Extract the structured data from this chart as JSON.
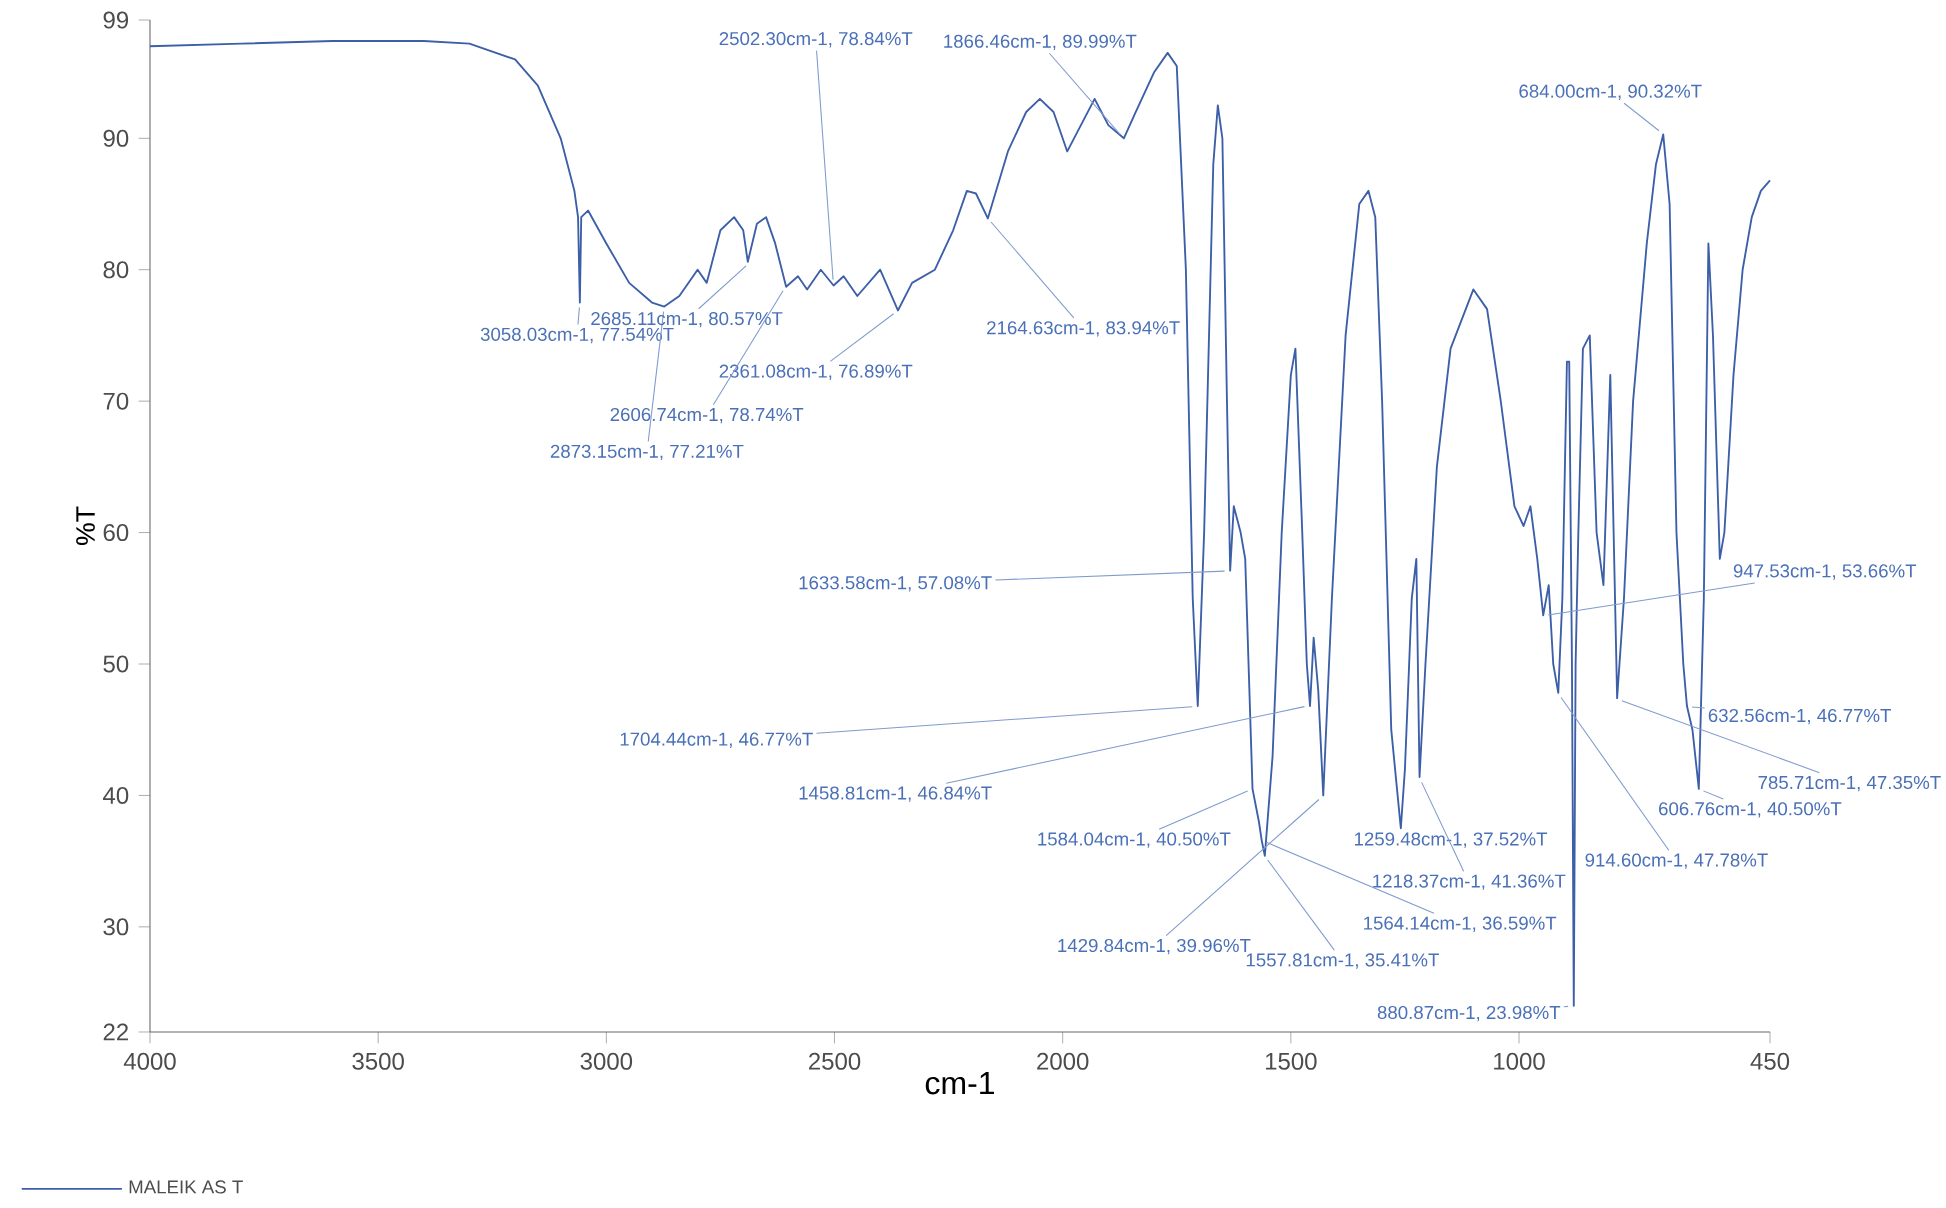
{
  "chart_data": {
    "type": "line",
    "xlabel": "cm-1",
    "ylabel": "%T",
    "xlim": [
      4000,
      450
    ],
    "ylim": [
      22,
      99
    ],
    "xticks": [
      4000,
      3500,
      3000,
      2500,
      2000,
      1500,
      1000,
      450
    ],
    "yticks": [
      22,
      30,
      40,
      50,
      60,
      70,
      80,
      90,
      99
    ],
    "legend": "bottom",
    "marker": "none",
    "line_style": "solid",
    "series": [
      {
        "name": "MALEIK AS T",
        "color": "#3c5fa8",
        "x": [
          4000,
          3800,
          3600,
          3400,
          3300,
          3200,
          3150,
          3100,
          3070,
          3062,
          3058,
          3055,
          3040,
          3000,
          2950,
          2900,
          2873,
          2840,
          2800,
          2780,
          2750,
          2720,
          2700,
          2690,
          2670,
          2650,
          2630,
          2606,
          2580,
          2560,
          2530,
          2502,
          2480,
          2450,
          2400,
          2361,
          2330,
          2280,
          2240,
          2210,
          2190,
          2164,
          2120,
          2080,
          2050,
          2020,
          1990,
          1960,
          1930,
          1900,
          1866,
          1840,
          1800,
          1770,
          1750,
          1730,
          1715,
          1704,
          1690,
          1670,
          1660,
          1650,
          1640,
          1633,
          1625,
          1610,
          1600,
          1584,
          1570,
          1564,
          1557,
          1540,
          1520,
          1500,
          1490,
          1475,
          1465,
          1458,
          1450,
          1440,
          1429,
          1410,
          1380,
          1350,
          1330,
          1315,
          1300,
          1280,
          1259,
          1250,
          1235,
          1225,
          1218,
          1205,
          1180,
          1150,
          1100,
          1070,
          1040,
          1010,
          990,
          975,
          960,
          947,
          935,
          925,
          914,
          905,
          895,
          890,
          884,
          880,
          876,
          870,
          860,
          845,
          830,
          815,
          800,
          785,
          770,
          750,
          720,
          700,
          684,
          670,
          655,
          640,
          632,
          620,
          606,
          595,
          585,
          575,
          560,
          550,
          530,
          510,
          490,
          470,
          450
        ],
        "values": [
          97,
          97.2,
          97.4,
          97.4,
          97.2,
          96,
          94,
          90,
          86,
          84,
          77.5,
          84,
          84.5,
          82,
          79,
          77.5,
          77.2,
          78,
          80,
          79,
          83,
          84,
          83,
          80.6,
          83.5,
          84,
          82,
          78.7,
          79.5,
          78.5,
          80,
          78.8,
          79.5,
          78,
          80,
          76.9,
          79,
          80,
          83,
          86,
          85.8,
          83.9,
          89,
          92,
          93,
          92,
          89,
          91,
          93,
          91,
          90,
          92,
          95,
          96.5,
          95.5,
          80,
          55,
          46.8,
          60,
          88,
          92.5,
          90,
          70,
          57.1,
          62,
          60,
          58,
          40.5,
          38,
          36.6,
          35.4,
          43,
          60,
          72,
          74,
          60,
          50,
          46.8,
          52,
          48,
          40,
          55,
          75,
          85,
          86,
          84,
          70,
          45,
          37.5,
          42,
          55,
          58,
          41.4,
          50,
          65,
          74,
          78.5,
          77,
          70,
          62,
          60.5,
          62,
          58,
          53.7,
          56,
          50,
          47.8,
          55,
          73,
          73,
          50,
          24,
          50,
          60,
          74,
          75,
          60,
          56,
          72,
          47.4,
          55,
          70,
          82,
          88,
          90.3,
          85,
          60,
          50,
          46.8,
          45,
          40.5,
          55,
          82,
          75,
          58,
          60,
          72,
          80,
          84,
          86,
          86.8
        ]
      }
    ],
    "annotations": [
      {
        "text": "3058.03cm-1, 77.54%T",
        "x": 3058.03,
        "y": 77.54
      },
      {
        "text": "2873.15cm-1, 77.21%T",
        "x": 2873.15,
        "y": 77.21
      },
      {
        "text": "2685.11cm-1, 80.57%T",
        "x": 2685.11,
        "y": 80.57
      },
      {
        "text": "2502.30cm-1, 78.84%T",
        "x": 2502.3,
        "y": 78.84
      },
      {
        "text": "2361.08cm-1, 76.89%T",
        "x": 2361.08,
        "y": 76.89
      },
      {
        "text": "2606.74cm-1, 78.74%T",
        "x": 2606.74,
        "y": 78.74
      },
      {
        "text": "1866.46cm-1, 89.99%T",
        "x": 1866.46,
        "y": 89.99
      },
      {
        "text": "2164.63cm-1, 83.94%T",
        "x": 2164.63,
        "y": 83.94
      },
      {
        "text": "684.00cm-1, 90.32%T",
        "x": 684.0,
        "y": 90.32
      },
      {
        "text": "1633.58cm-1, 57.08%T",
        "x": 1633.58,
        "y": 57.08
      },
      {
        "text": "1704.44cm-1, 46.77%T",
        "x": 1704.44,
        "y": 46.77
      },
      {
        "text": "1458.81cm-1, 46.84%T",
        "x": 1458.81,
        "y": 46.84
      },
      {
        "text": "1584.04cm-1, 40.50%T",
        "x": 1584.04,
        "y": 40.5
      },
      {
        "text": "1259.48cm-1, 37.52%T",
        "x": 1259.48,
        "y": 37.52
      },
      {
        "text": "1218.37cm-1, 41.36%T",
        "x": 1218.37,
        "y": 41.36
      },
      {
        "text": "1564.14cm-1, 36.59%T",
        "x": 1564.14,
        "y": 36.59
      },
      {
        "text": "1429.84cm-1, 39.96%T",
        "x": 1429.84,
        "y": 39.96
      },
      {
        "text": "1557.81cm-1, 35.41%T",
        "x": 1557.81,
        "y": 35.41
      },
      {
        "text": "880.87cm-1, 23.98%T",
        "x": 880.87,
        "y": 23.98
      },
      {
        "text": "947.53cm-1, 53.66%T",
        "x": 947.53,
        "y": 53.66
      },
      {
        "text": "914.60cm-1, 47.78%T",
        "x": 914.6,
        "y": 47.78
      },
      {
        "text": "632.56cm-1, 46.77%T",
        "x": 632.56,
        "y": 46.77
      },
      {
        "text": "785.71cm-1, 47.35%T",
        "x": 785.71,
        "y": 47.35
      },
      {
        "text": "606.76cm-1, 40.50%T",
        "x": 606.76,
        "y": 40.5
      }
    ]
  }
}
